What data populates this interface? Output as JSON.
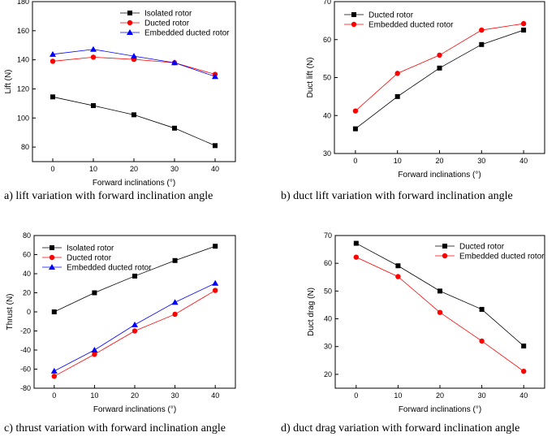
{
  "captions": {
    "a": "a) lift variation with forward inclination angle",
    "b": "b) duct lift variation with forward inclination angle",
    "c": "c) thrust variation with forward inclination angle",
    "d": "d) duct drag variation with forward inclination angle"
  },
  "chart_data": [
    {
      "id": "a",
      "type": "line",
      "title": "",
      "xlabel": "Forward inclinations (°)",
      "ylabel": "Lift (N)",
      "x": [
        0,
        10,
        20,
        30,
        40
      ],
      "xlim": [
        -5,
        45
      ],
      "ylim": [
        70,
        180
      ],
      "xticks": [
        0,
        10,
        20,
        30,
        40
      ],
      "yticks": [
        80,
        100,
        120,
        140,
        160,
        180
      ],
      "grid": false,
      "legend_position": "top-right",
      "series": [
        {
          "name": "Isolated rotor",
          "values": [
            114.5,
            108.5,
            102.2,
            93.0,
            81.0
          ],
          "color": "#000000",
          "marker": "square"
        },
        {
          "name": "Ducted rotor",
          "values": [
            139.0,
            141.8,
            140.3,
            138.0,
            130.0
          ],
          "color": "#ff0000",
          "marker": "circle"
        },
        {
          "name": "Embedded ducted rotor",
          "values": [
            143.8,
            147.2,
            142.5,
            138.0,
            128.5
          ],
          "color": "#0000ff",
          "marker": "triangle"
        }
      ]
    },
    {
      "id": "b",
      "type": "line",
      "title": "",
      "xlabel": "Forward inclinations (°)",
      "ylabel": "Duct lift (N)",
      "x": [
        0,
        10,
        20,
        30,
        40
      ],
      "xlim": [
        -5,
        45
      ],
      "ylim": [
        30,
        70
      ],
      "xticks": [
        0,
        10,
        20,
        30,
        40
      ],
      "yticks": [
        30,
        40,
        50,
        60,
        70
      ],
      "grid": false,
      "legend_position": "top-left",
      "series": [
        {
          "name": "Ducted rotor",
          "values": [
            36.5,
            45.0,
            52.5,
            58.7,
            62.5
          ],
          "color": "#000000",
          "marker": "square"
        },
        {
          "name": "Embedded ducted rotor",
          "values": [
            41.2,
            51.1,
            55.9,
            62.5,
            64.2
          ],
          "color": "#ff0000",
          "marker": "circle"
        }
      ]
    },
    {
      "id": "c",
      "type": "line",
      "title": "",
      "xlabel": "Forward inclinations (°)",
      "ylabel": "Thrust (N)",
      "x": [
        0,
        10,
        20,
        30,
        40
      ],
      "xlim": [
        -5,
        45
      ],
      "ylim": [
        -80,
        80
      ],
      "xticks": [
        0,
        10,
        20,
        30,
        40
      ],
      "yticks": [
        -80,
        -60,
        -40,
        -20,
        0,
        20,
        40,
        60,
        80
      ],
      "grid": false,
      "legend_position": "top-left",
      "series": [
        {
          "name": "Isolated rotor",
          "values": [
            0.0,
            20.0,
            37.5,
            53.8,
            68.8
          ],
          "color": "#000000",
          "marker": "square"
        },
        {
          "name": "Ducted rotor",
          "values": [
            -67.5,
            -44.5,
            -20.0,
            -2.5,
            22.5
          ],
          "color": "#ff0000",
          "marker": "circle"
        },
        {
          "name": "Embedded ducted rotor",
          "values": [
            -62.0,
            -40.0,
            -13.5,
            10.0,
            30.0
          ],
          "color": "#0000ff",
          "marker": "triangle"
        }
      ]
    },
    {
      "id": "d",
      "type": "line",
      "title": "",
      "xlabel": "Forward inclinations (°)",
      "ylabel": "Duct drag (N)",
      "x": [
        0,
        10,
        20,
        30,
        40
      ],
      "xlim": [
        -5,
        45
      ],
      "ylim": [
        15,
        70
      ],
      "xticks": [
        0,
        10,
        20,
        30,
        40
      ],
      "yticks": [
        20,
        30,
        40,
        50,
        60,
        70
      ],
      "grid": false,
      "legend_position": "top-right",
      "series": [
        {
          "name": "Ducted rotor",
          "values": [
            67.2,
            59.1,
            50.0,
            43.4,
            30.2
          ],
          "color": "#000000",
          "marker": "square"
        },
        {
          "name": "Embedded ducted rotor",
          "values": [
            62.2,
            55.2,
            42.3,
            32.0,
            21.1
          ],
          "color": "#ff0000",
          "marker": "circle"
        }
      ]
    }
  ]
}
